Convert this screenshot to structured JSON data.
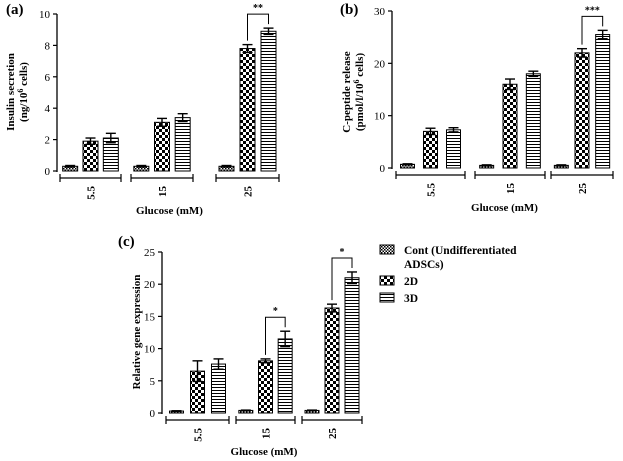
{
  "colors": {
    "ink": "#000000",
    "background": "#ffffff"
  },
  "legend": {
    "items": [
      {
        "label_lines": [
          "Cont (Undifferentiated",
          "ADSCs)"
        ],
        "pattern": "checker-fine"
      },
      {
        "label_lines": [
          "2D"
        ],
        "pattern": "checker-coarse"
      },
      {
        "label_lines": [
          "3D"
        ],
        "pattern": "horizontal-stripes"
      }
    ]
  },
  "chart_data": [
    {
      "type": "bar",
      "panel_label": "(a)",
      "ylabel_lines": [
        "Insulin secretion",
        "(ng/10",
        "6",
        " cells)"
      ],
      "xlabel": "Glucose (mM)",
      "categories": [
        "5.5",
        "15",
        "25"
      ],
      "ylim": [
        0,
        10
      ],
      "yticks": [
        0,
        2,
        4,
        6,
        8,
        10
      ],
      "series": [
        {
          "values": [
            0.3,
            0.3,
            0.3
          ],
          "errors": [
            0.05,
            0.05,
            0.05
          ]
        },
        {
          "values": [
            1.9,
            3.1,
            7.8
          ],
          "errors": [
            0.2,
            0.25,
            0.25
          ]
        },
        {
          "values": [
            2.1,
            3.4,
            8.9
          ],
          "errors": [
            0.3,
            0.25,
            0.2
          ]
        }
      ],
      "annotations": [
        {
          "category": 2,
          "text": "**"
        }
      ]
    },
    {
      "type": "bar",
      "panel_label": "(b)",
      "ylabel_lines": [
        "C-peptide release",
        "(pmol/l/10",
        "6",
        " cells)"
      ],
      "xlabel": "Glucose (mM)",
      "categories": [
        "5.5",
        "15",
        "25"
      ],
      "ylim": [
        0,
        30
      ],
      "yticks": [
        0,
        10,
        20,
        30
      ],
      "series": [
        {
          "values": [
            0.7,
            0.5,
            0.5
          ],
          "errors": [
            0.1,
            0.1,
            0.1
          ]
        },
        {
          "values": [
            7.0,
            16.0,
            22.0
          ],
          "errors": [
            0.6,
            1.0,
            0.8
          ]
        },
        {
          "values": [
            7.3,
            18.0,
            25.5
          ],
          "errors": [
            0.4,
            0.5,
            0.8
          ]
        }
      ],
      "annotations": [
        {
          "category": 2,
          "text": "***"
        }
      ]
    },
    {
      "type": "bar",
      "panel_label": "(c)",
      "ylabel_lines": [
        "Relative gene expression"
      ],
      "xlabel": "Glucose (mM)",
      "categories": [
        "5.5",
        "15",
        "25"
      ],
      "ylim": [
        0,
        25
      ],
      "yticks": [
        0,
        5,
        10,
        15,
        20,
        25
      ],
      "series": [
        {
          "values": [
            0.3,
            0.4,
            0.4
          ],
          "errors": [
            0.05,
            0.05,
            0.05
          ]
        },
        {
          "values": [
            6.5,
            8.1,
            16.3
          ],
          "errors": [
            1.6,
            0.3,
            0.6
          ]
        },
        {
          "values": [
            7.6,
            11.5,
            21.0
          ],
          "errors": [
            0.8,
            1.2,
            0.9
          ]
        }
      ],
      "annotations": [
        {
          "category": 1,
          "text": "*"
        },
        {
          "category": 2,
          "text": "*"
        }
      ]
    }
  ]
}
